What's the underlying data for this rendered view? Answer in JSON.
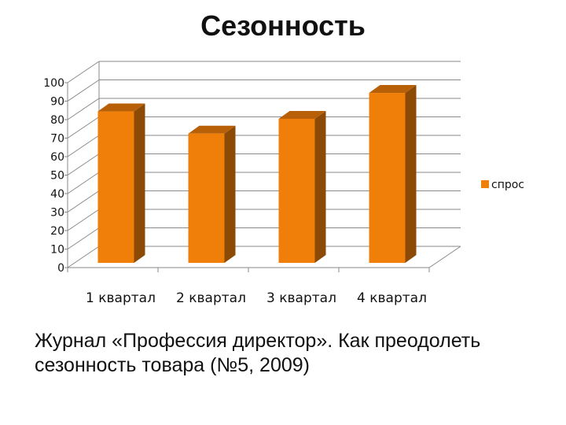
{
  "slide": {
    "title": "Сезонность",
    "caption": "Журнал «Профессия директор». Как преодолеть сезонность товара (№5, 2009)"
  },
  "chart_data": {
    "type": "bar",
    "style": "3d-column",
    "categories": [
      "1 квартал",
      "2 квартал",
      "3 квартал",
      "4 квартал"
    ],
    "series": [
      {
        "name": "спрос",
        "values": [
          87,
          75,
          83,
          97
        ],
        "color": "#F07F09",
        "side_color": "#8B4A05",
        "top_color": "#B86008"
      }
    ],
    "ylim": [
      0,
      100
    ],
    "yticks": [
      0,
      10,
      20,
      30,
      40,
      50,
      60,
      70,
      80,
      90,
      100
    ],
    "grid": true,
    "legend": "right"
  }
}
